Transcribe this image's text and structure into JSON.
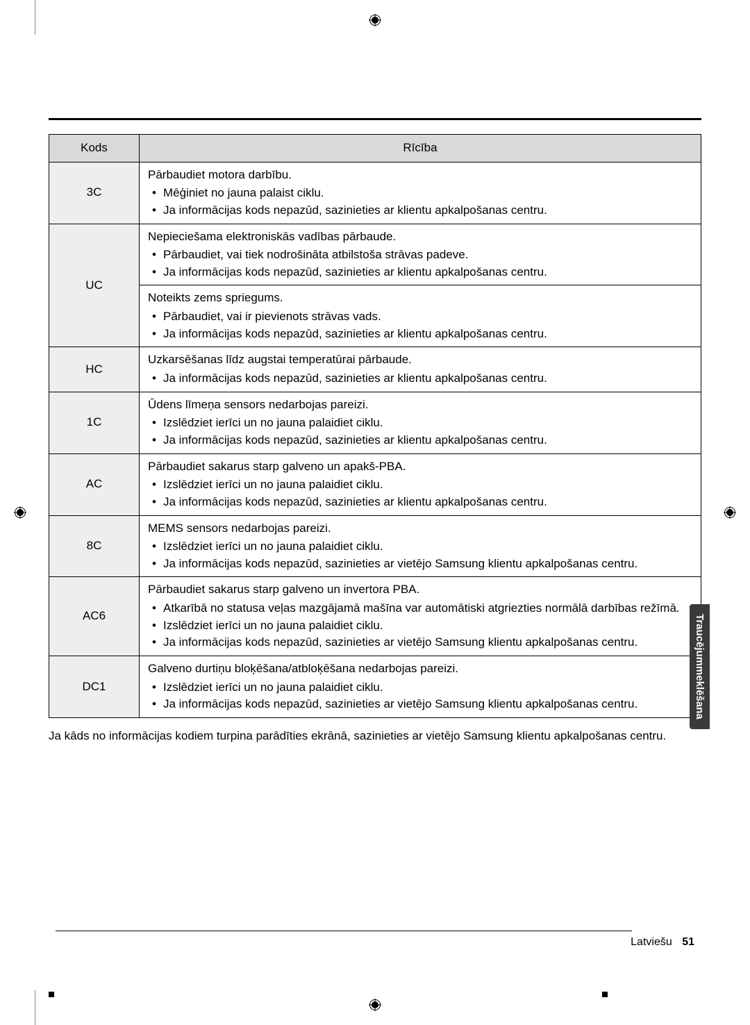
{
  "registration_marks": true,
  "table": {
    "headers": {
      "code": "Kods",
      "action": "Rīcība"
    },
    "rows": [
      {
        "code": "3C",
        "cells": [
          {
            "title": "Pārbaudiet motora darbību.",
            "items": [
              "Mēģiniet no jauna palaist ciklu.",
              "Ja informācijas kods nepazūd, sazinieties ar klientu apkalpošanas centru."
            ]
          }
        ]
      },
      {
        "code": "UC",
        "cells": [
          {
            "title": "Nepieciešama elektroniskās vadības pārbaude.",
            "items": [
              "Pārbaudiet, vai tiek nodrošināta atbilstoša strāvas padeve.",
              "Ja informācijas kods nepazūd, sazinieties ar klientu apkalpošanas centru."
            ]
          },
          {
            "title": "Noteikts zems spriegums.",
            "items": [
              "Pārbaudiet, vai ir pievienots strāvas vads.",
              "Ja informācijas kods nepazūd, sazinieties ar klientu apkalpošanas centru."
            ]
          }
        ]
      },
      {
        "code": "HC",
        "cells": [
          {
            "title": "Uzkarsēšanas līdz augstai temperatūrai pārbaude.",
            "items": [
              "Ja informācijas kods nepazūd, sazinieties ar klientu apkalpošanas centru."
            ]
          }
        ]
      },
      {
        "code": "1C",
        "cells": [
          {
            "title": "Ūdens līmeņa sensors nedarbojas pareizi.",
            "items": [
              "Izslēdziet ierīci un no jauna palaidiet ciklu.",
              "Ja informācijas kods nepazūd, sazinieties ar klientu apkalpošanas centru."
            ]
          }
        ]
      },
      {
        "code": "AC",
        "cells": [
          {
            "title": "Pārbaudiet sakarus starp galveno un apakš-PBA.",
            "items": [
              "Izslēdziet ierīci un no jauna palaidiet ciklu.",
              "Ja informācijas kods nepazūd, sazinieties ar klientu apkalpošanas centru."
            ]
          }
        ]
      },
      {
        "code": "8C",
        "cells": [
          {
            "title": "MEMS sensors nedarbojas pareizi.",
            "items": [
              "Izslēdziet ierīci un no jauna palaidiet ciklu.",
              "Ja informācijas kods nepazūd, sazinieties ar vietējo Samsung klientu apkalpošanas centru."
            ]
          }
        ]
      },
      {
        "code": "AC6",
        "cells": [
          {
            "title": "Pārbaudiet sakarus starp galveno un invertora PBA.",
            "items": [
              "Atkarībā no statusa veļas mazgājamā mašīna var automātiski atgriezties normālā darbības režīmā.",
              "Izslēdziet ierīci un no jauna palaidiet ciklu.",
              "Ja informācijas kods nepazūd, sazinieties ar vietējo Samsung klientu apkalpošanas centru."
            ]
          }
        ]
      },
      {
        "code": "DC1",
        "cells": [
          {
            "title": "Galveno durtiņu bloķēšana/atbloķēšana nedarbojas pareizi.",
            "items": [
              "Izslēdziet ierīci un no jauna palaidiet ciklu.",
              "Ja informācijas kods nepazūd, sazinieties ar vietējo Samsung klientu apkalpošanas centru."
            ]
          }
        ]
      }
    ]
  },
  "note": "Ja kāds no informācijas kodiem turpina parādīties ekrānā, sazinieties ar vietējo Samsung klientu apkalpošanas centru.",
  "side_tab": "Traucējummeklēšana",
  "footer": {
    "lang": "Latviešu",
    "page": "51"
  }
}
